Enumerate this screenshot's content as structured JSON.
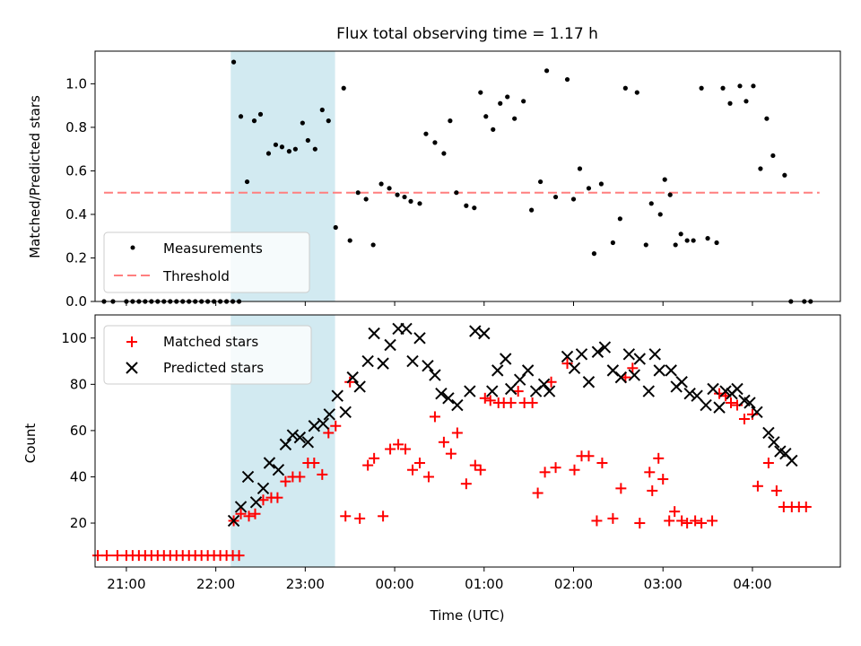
{
  "chart_data": [
    {
      "type": "scatter",
      "title": "Flux total observing time = 1.17 h",
      "xlabel": "",
      "ylabel": "Matched/Predicted stars",
      "ylim": [
        0,
        1.15
      ],
      "xlim": [
        "20:39",
        "04:59"
      ],
      "x_unit": "hours relative to 00:00 UTC",
      "yticks": [
        "0.0",
        "0.2",
        "0.4",
        "0.6",
        "0.8",
        "1.0"
      ],
      "ytick_values": [
        0,
        0.2,
        0.4,
        0.6,
        0.8,
        1.0
      ],
      "shaded_interval": {
        "start": "22:10",
        "end": "23:20",
        "color": "#add8e6"
      },
      "threshold": {
        "value": 0.5,
        "from": "20:45",
        "to": "04:45",
        "color": "#ff7f7f",
        "style": "dashed"
      },
      "legend": {
        "placement": "lower-left",
        "entries": [
          {
            "label": "Measurements",
            "marker": "dot",
            "color": "#000000"
          },
          {
            "label": "Threshold",
            "marker": "dashed-line",
            "color": "#ff7f7f"
          }
        ]
      },
      "series": [
        {
          "name": "Measurements",
          "x": [
            -3.25,
            -3.15,
            -3.0,
            -2.93,
            -2.86,
            -2.79,
            -2.72,
            -2.65,
            -2.58,
            -2.51,
            -2.44,
            -2.37,
            -2.3,
            -2.23,
            -2.16,
            -2.09,
            -2.02,
            -1.95,
            -1.88,
            -1.81,
            -1.74,
            -1.8,
            -1.72,
            -1.65,
            -1.57,
            -1.5,
            -1.41,
            -1.33,
            -1.26,
            -1.18,
            -1.11,
            -1.03,
            -0.97,
            -0.89,
            -0.81,
            -0.74,
            -0.66,
            -0.57,
            -0.5,
            -0.41,
            -0.32,
            -0.24,
            -0.15,
            -0.06,
            0.03,
            0.11,
            0.18,
            0.28,
            0.35,
            0.45,
            0.55,
            0.62,
            0.69,
            0.8,
            0.89,
            0.96,
            1.02,
            1.1,
            1.18,
            1.26,
            1.34,
            1.44,
            1.53,
            1.63,
            1.7,
            1.8,
            1.93,
            2.0,
            2.07,
            2.17,
            2.23,
            2.31,
            2.44,
            2.52,
            2.58,
            2.71,
            2.81,
            2.87,
            2.97,
            3.02,
            3.08,
            3.14,
            3.2,
            3.27,
            3.34,
            3.43,
            3.5,
            3.6,
            3.67,
            3.75,
            3.86,
            3.93,
            4.01,
            4.09,
            4.16,
            4.23,
            4.36,
            4.43,
            4.58,
            4.65
          ],
          "y": [
            0,
            0,
            0,
            0,
            0,
            0,
            0,
            0,
            0,
            0,
            0,
            0,
            0,
            0,
            0,
            0,
            0,
            0,
            0,
            0,
            0,
            1.1,
            0.85,
            0.55,
            0.83,
            0.86,
            0.68,
            0.72,
            0.71,
            0.69,
            0.7,
            0.82,
            0.74,
            0.7,
            0.88,
            0.83,
            0.34,
            0.98,
            0.28,
            0.5,
            0.47,
            0.26,
            0.54,
            0.52,
            0.49,
            0.48,
            0.46,
            0.45,
            0.77,
            0.73,
            0.68,
            0.83,
            0.5,
            0.44,
            0.43,
            0.96,
            0.85,
            0.79,
            0.91,
            0.94,
            0.84,
            0.92,
            0.42,
            0.55,
            1.06,
            0.48,
            1.02,
            0.47,
            0.61,
            0.52,
            0.22,
            0.54,
            0.27,
            0.38,
            0.98,
            0.96,
            0.26,
            0.45,
            0.4,
            0.56,
            0.49,
            0.26,
            0.31,
            0.28,
            0.28,
            0.98,
            0.29,
            0.27,
            0.98,
            0.91,
            0.99,
            0.92,
            0.99,
            0.61,
            0.84,
            0.67,
            0.58,
            0.0,
            0.0,
            0.0
          ]
        }
      ]
    },
    {
      "type": "scatter",
      "title": "",
      "xlabel": "Time (UTC)",
      "ylabel": "Count",
      "ylim": [
        1,
        110
      ],
      "xlim": [
        "20:39",
        "04:59"
      ],
      "x_unit": "hours relative to 00:00 UTC",
      "xticks": [
        "21:00",
        "22:00",
        "23:00",
        "00:00",
        "01:00",
        "02:00",
        "03:00",
        "04:00"
      ],
      "xtick_values": [
        -3,
        -2,
        -1,
        0,
        1,
        2,
        3,
        4
      ],
      "yticks": [
        "20",
        "40",
        "60",
        "80",
        "100"
      ],
      "ytick_values": [
        20,
        40,
        60,
        80,
        100
      ],
      "shaded_interval": {
        "start": "22:10",
        "end": "23:20",
        "color": "#add8e6"
      },
      "legend": {
        "placement": "upper-left",
        "entries": [
          {
            "label": "Matched stars",
            "marker": "plus",
            "color": "#ff0000"
          },
          {
            "label": "Predicted stars",
            "marker": "x",
            "color": "#000000"
          }
        ]
      },
      "series": [
        {
          "name": "Matched stars",
          "x": [
            -3.32,
            -3.22,
            -3.1,
            -3.0,
            -2.93,
            -2.86,
            -2.79,
            -2.72,
            -2.65,
            -2.58,
            -2.51,
            -2.44,
            -2.37,
            -2.3,
            -2.23,
            -2.16,
            -2.09,
            -2.02,
            -1.95,
            -1.88,
            -1.81,
            -1.74,
            -1.8,
            -1.72,
            -1.63,
            -1.56,
            -1.47,
            -1.38,
            -1.31,
            -1.22,
            -1.14,
            -1.06,
            -0.97,
            -0.9,
            -0.81,
            -0.74,
            -0.66,
            -0.55,
            -0.5,
            -0.39,
            -0.3,
            -0.23,
            -0.13,
            -0.05,
            0.04,
            0.12,
            0.2,
            0.28,
            0.38,
            0.45,
            0.55,
            0.63,
            0.7,
            0.8,
            0.9,
            0.96,
            1.01,
            1.07,
            1.16,
            1.22,
            1.3,
            1.38,
            1.45,
            1.54,
            1.6,
            1.68,
            1.75,
            1.8,
            1.93,
            2.01,
            2.09,
            2.17,
            2.26,
            2.32,
            2.44,
            2.53,
            2.58,
            2.66,
            2.74,
            2.85,
            2.88,
            2.95,
            3.0,
            3.07,
            3.13,
            3.21,
            3.27,
            3.36,
            3.43,
            3.55,
            3.63,
            3.7,
            3.76,
            3.83,
            3.91,
            4.0,
            4.06,
            4.18,
            4.27,
            4.35,
            4.44,
            4.52,
            4.6
          ],
          "y": [
            6,
            6,
            6,
            6,
            6,
            6,
            6,
            6,
            6,
            6,
            6,
            6,
            6,
            6,
            6,
            6,
            6,
            6,
            6,
            6,
            6,
            6,
            21,
            24,
            23,
            24,
            30,
            31,
            31,
            38,
            40,
            40,
            46,
            46,
            41,
            59,
            62,
            23,
            81,
            22,
            45,
            48,
            23,
            52,
            54,
            52,
            43,
            46,
            40,
            66,
            55,
            50,
            59,
            37,
            45,
            43,
            74,
            73,
            72,
            72,
            72,
            77,
            72,
            72,
            33,
            42,
            81,
            44,
            89,
            43,
            49,
            49,
            21,
            46,
            22,
            35,
            83,
            87,
            20,
            42,
            34,
            48,
            39,
            21,
            25,
            21,
            20,
            21,
            20,
            21,
            76,
            75,
            72,
            71,
            65,
            67,
            36,
            46,
            34,
            27,
            27,
            27,
            27
          ]
        },
        {
          "name": "Predicted stars",
          "x": [
            -1.8,
            -1.72,
            -1.64,
            -1.55,
            -1.47,
            -1.4,
            -1.3,
            -1.22,
            -1.14,
            -1.06,
            -0.97,
            -0.9,
            -0.8,
            -0.73,
            -0.64,
            -0.55,
            -0.47,
            -0.39,
            -0.3,
            -0.23,
            -0.13,
            -0.05,
            0.04,
            0.13,
            0.2,
            0.28,
            0.37,
            0.45,
            0.52,
            0.6,
            0.7,
            0.84,
            0.9,
            1.0,
            1.09,
            1.15,
            1.24,
            1.3,
            1.4,
            1.49,
            1.58,
            1.67,
            1.73,
            1.93,
            2.01,
            2.09,
            2.17,
            2.27,
            2.35,
            2.44,
            2.53,
            2.62,
            2.68,
            2.74,
            2.84,
            2.91,
            2.96,
            3.09,
            3.15,
            3.21,
            3.3,
            3.38,
            3.48,
            3.56,
            3.63,
            3.7,
            3.77,
            3.83,
            3.91,
            3.97,
            4.05,
            4.18,
            4.24,
            4.31,
            4.37,
            4.44
          ],
          "y": [
            21,
            27,
            40,
            29,
            35,
            46,
            43,
            54,
            58,
            57,
            55,
            62,
            63,
            67,
            75,
            68,
            83,
            79,
            90,
            102,
            89,
            97,
            104,
            104,
            90,
            100,
            88,
            84,
            76,
            74,
            71,
            77,
            103,
            102,
            77,
            86,
            91,
            78,
            82,
            86,
            77,
            80,
            77,
            92,
            87,
            93,
            81,
            94,
            96,
            86,
            83,
            93,
            84,
            91,
            77,
            93,
            86,
            86,
            79,
            81,
            76,
            75,
            71,
            78,
            70,
            77,
            76,
            78,
            73,
            72,
            68,
            59,
            55,
            51,
            50,
            47
          ]
        }
      ]
    }
  ]
}
